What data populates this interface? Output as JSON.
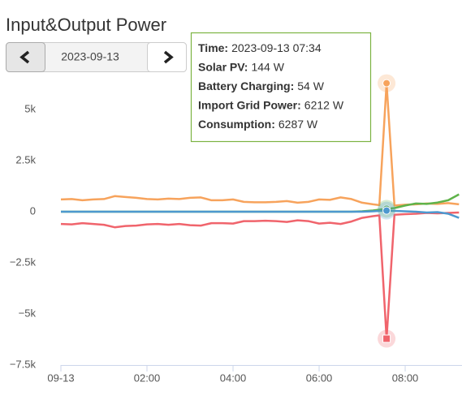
{
  "title": "Input&Output Power",
  "date_picker": {
    "date": "2023-09-13"
  },
  "tooltip": {
    "rows": [
      {
        "label": "Time:",
        "value": "2023-09-13 07:34"
      },
      {
        "label": "Solar PV:",
        "value": "144 W"
      },
      {
        "label": "Battery Charging:",
        "value": "54 W"
      },
      {
        "label": "Import Grid Power:",
        "value": "6212 W"
      },
      {
        "label": "Consumption:",
        "value": "6287 W"
      }
    ]
  },
  "chart_data": {
    "type": "line",
    "x": [
      0,
      0.25,
      0.5,
      0.75,
      1,
      1.25,
      1.5,
      1.75,
      2,
      2.25,
      2.5,
      2.75,
      3,
      3.25,
      3.5,
      3.75,
      4,
      4.25,
      4.5,
      4.75,
      5,
      5.25,
      5.5,
      5.75,
      6,
      6.25,
      6.5,
      6.75,
      7,
      7.25,
      7.4,
      7.567,
      7.75,
      8,
      8.25,
      8.5,
      8.75,
      9,
      9.25
    ],
    "series": [
      {
        "color": "#f7a35c",
        "values": [
          600,
          620,
          560,
          600,
          620,
          760,
          720,
          680,
          620,
          600,
          640,
          620,
          680,
          700,
          560,
          560,
          600,
          480,
          460,
          460,
          480,
          520,
          440,
          480,
          600,
          580,
          700,
          620,
          440,
          360,
          320,
          6287,
          300,
          340,
          360,
          400,
          380,
          420,
          360
        ]
      },
      {
        "color": "#f0646c",
        "marker": "square",
        "values": [
          -600,
          -620,
          -560,
          -600,
          -640,
          -760,
          -700,
          -680,
          -620,
          -600,
          -640,
          -600,
          -660,
          -680,
          -560,
          -560,
          -580,
          -460,
          -460,
          -440,
          -460,
          -500,
          -420,
          -460,
          -580,
          -540,
          -600,
          -480,
          -300,
          -220,
          -180,
          -6212,
          -150,
          -120,
          -100,
          -60,
          -80,
          -60,
          -40
        ]
      },
      {
        "color": "#5fb34a",
        "values": [
          0,
          0,
          0,
          0,
          0,
          0,
          0,
          0,
          0,
          0,
          0,
          0,
          0,
          0,
          0,
          0,
          0,
          0,
          0,
          0,
          0,
          0,
          0,
          0,
          0,
          0,
          0,
          0,
          20,
          60,
          100,
          144,
          180,
          300,
          400,
          380,
          450,
          560,
          850
        ]
      },
      {
        "color": "#4d98cf",
        "values": [
          0,
          0,
          0,
          0,
          0,
          0,
          0,
          0,
          0,
          0,
          0,
          0,
          0,
          0,
          0,
          0,
          0,
          0,
          0,
          0,
          0,
          0,
          0,
          0,
          0,
          0,
          0,
          0,
          0,
          20,
          40,
          54,
          40,
          20,
          0,
          -40,
          -20,
          -100,
          -300
        ]
      }
    ],
    "xlim": [
      0,
      9.32
    ],
    "xticks": [
      {
        "value": 0,
        "label": "09-13"
      },
      {
        "value": 2,
        "label": "02:00"
      },
      {
        "value": 4,
        "label": "04:00"
      },
      {
        "value": 6,
        "label": "06:00"
      },
      {
        "value": 8,
        "label": "08:00"
      }
    ],
    "ylim": [
      -7500,
      7500
    ],
    "yticks": [
      {
        "value": -7500,
        "label": "−7.5k"
      },
      {
        "value": -5000,
        "label": "−5k"
      },
      {
        "value": -2500,
        "label": "−2.5k"
      },
      0,
      {
        "value": 2500,
        "label": "2.5k"
      },
      {
        "value": 5000,
        "label": "5k"
      }
    ]
  }
}
